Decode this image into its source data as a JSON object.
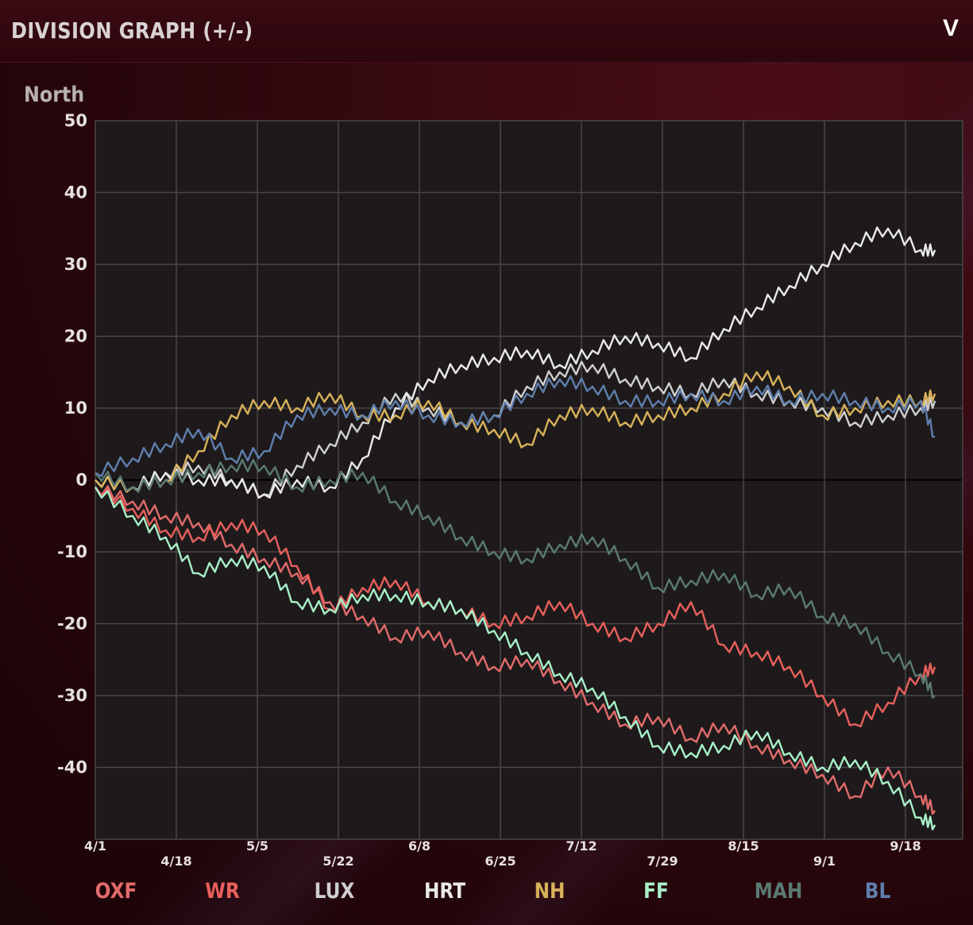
{
  "header": {
    "title": "DIVISION GRAPH (+/-)",
    "collapse_label": "V"
  },
  "division_label": "North",
  "colors": {
    "OXF": "#e26b6b",
    "WR": "#e8605c",
    "LUX": "#cfcfcf",
    "HRT": "#eaeaea",
    "NH": "#d8b25a",
    "FF": "#a8f0c8",
    "MAH": "#5a7a72",
    "BL": "#5f7fad"
  },
  "chart_data": {
    "type": "line",
    "xlabel": "",
    "ylabel": "",
    "ylim": [
      -50,
      50
    ],
    "yticks": [
      50,
      40,
      30,
      20,
      10,
      0,
      -10,
      -20,
      -30,
      -40
    ],
    "x_tick_labels": [
      "4/1",
      "4/18",
      "5/5",
      "5/22",
      "6/8",
      "6/25",
      "7/12",
      "7/29",
      "8/15",
      "9/1",
      "9/18"
    ],
    "x_range_days": [
      0,
      180
    ],
    "grid": true,
    "legend_position": "bottom",
    "series": [
      {
        "name": "OXF",
        "days": [
          0,
          8,
          15,
          22,
          29,
          36,
          43,
          50,
          57,
          64,
          71,
          78,
          85,
          92,
          99,
          106,
          113,
          120,
          127,
          134,
          141,
          148,
          155,
          162,
          169,
          176,
          179
        ],
        "values": [
          -1,
          -3,
          -5,
          -6,
          -9,
          -11,
          -13,
          -17,
          -19,
          -22,
          -21,
          -24,
          -26,
          -25,
          -28,
          -31,
          -34,
          -33,
          -36,
          -34,
          -37,
          -39,
          -41,
          -44,
          -40,
          -44,
          -46
        ]
      },
      {
        "name": "WR",
        "days": [
          0,
          8,
          15,
          22,
          29,
          36,
          43,
          50,
          57,
          64,
          71,
          78,
          85,
          92,
          99,
          106,
          113,
          120,
          127,
          134,
          141,
          148,
          155,
          162,
          169,
          176,
          179
        ],
        "values": [
          -1,
          -4,
          -7,
          -8,
          -6,
          -7,
          -12,
          -18,
          -15,
          -14,
          -17,
          -18,
          -20,
          -19,
          -17,
          -20,
          -22,
          -20,
          -17,
          -23,
          -24,
          -26,
          -30,
          -34,
          -31,
          -27,
          -26
        ]
      },
      {
        "name": "LUX",
        "days": [
          0,
          8,
          15,
          22,
          29,
          36,
          43,
          50,
          57,
          64,
          71,
          78,
          85,
          92,
          99,
          106,
          113,
          120,
          127,
          134,
          141,
          148,
          155,
          162,
          169,
          176,
          179
        ],
        "values": [
          0,
          -1,
          1,
          2,
          0,
          -2,
          2,
          5,
          8,
          12,
          10,
          8,
          9,
          13,
          15,
          16,
          14,
          13,
          12,
          14,
          12,
          11,
          10,
          8,
          9,
          10,
          11
        ]
      },
      {
        "name": "HRT",
        "days": [
          0,
          8,
          15,
          22,
          29,
          36,
          43,
          50,
          57,
          64,
          71,
          78,
          85,
          92,
          99,
          106,
          113,
          120,
          127,
          134,
          141,
          148,
          155,
          162,
          169,
          176,
          179
        ],
        "values": [
          0,
          -1,
          1,
          0,
          0,
          -2,
          0,
          -1,
          3,
          10,
          14,
          16,
          17,
          18,
          16,
          18,
          20,
          19,
          17,
          21,
          24,
          27,
          30,
          33,
          35,
          32,
          32
        ]
      },
      {
        "name": "NH",
        "days": [
          0,
          8,
          15,
          22,
          29,
          36,
          43,
          50,
          57,
          64,
          71,
          78,
          85,
          92,
          99,
          106,
          113,
          120,
          127,
          134,
          141,
          148,
          155,
          162,
          169,
          176,
          179
        ],
        "values": [
          0,
          -1,
          0,
          4,
          9,
          11,
          10,
          12,
          9,
          9,
          11,
          8,
          7,
          5,
          9,
          10,
          8,
          9,
          10,
          12,
          15,
          13,
          9,
          10,
          11,
          11,
          12
        ]
      },
      {
        "name": "FF",
        "days": [
          0,
          8,
          15,
          22,
          29,
          36,
          43,
          50,
          57,
          64,
          71,
          78,
          85,
          92,
          99,
          106,
          113,
          120,
          127,
          134,
          141,
          148,
          155,
          162,
          169,
          176,
          179
        ],
        "values": [
          -1,
          -5,
          -8,
          -13,
          -11,
          -12,
          -17,
          -18,
          -16,
          -16,
          -17,
          -18,
          -21,
          -24,
          -27,
          -29,
          -33,
          -37,
          -38,
          -37,
          -35,
          -38,
          -40,
          -39,
          -42,
          -47,
          -48
        ]
      },
      {
        "name": "MAH",
        "days": [
          0,
          8,
          15,
          22,
          29,
          36,
          43,
          50,
          57,
          64,
          71,
          78,
          85,
          92,
          99,
          106,
          113,
          120,
          127,
          134,
          141,
          148,
          155,
          162,
          169,
          176,
          179
        ],
        "values": [
          1,
          -1,
          0,
          1,
          2,
          2,
          -1,
          0,
          1,
          -3,
          -5,
          -8,
          -10,
          -11,
          -9,
          -8,
          -11,
          -15,
          -14,
          -13,
          -16,
          -15,
          -19,
          -20,
          -24,
          -27,
          -30
        ]
      },
      {
        "name": "BL",
        "days": [
          0,
          8,
          15,
          22,
          29,
          36,
          43,
          50,
          57,
          64,
          71,
          78,
          85,
          92,
          99,
          106,
          113,
          120,
          127,
          134,
          141,
          148,
          155,
          162,
          169,
          176,
          179
        ],
        "values": [
          1,
          3,
          5,
          7,
          3,
          4,
          9,
          10,
          9,
          11,
          9,
          8,
          9,
          12,
          14,
          13,
          11,
          11,
          12,
          11,
          13,
          11,
          12,
          11,
          10,
          11,
          6
        ]
      }
    ]
  }
}
